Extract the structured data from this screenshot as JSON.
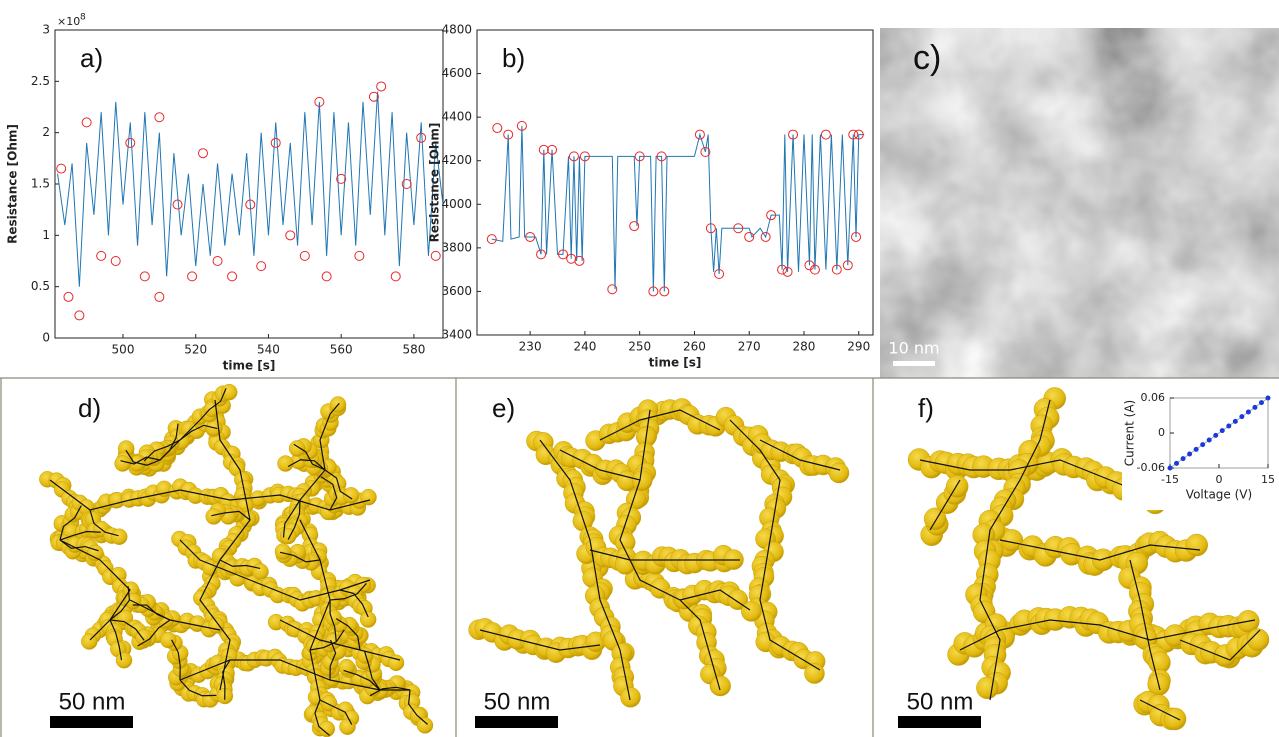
{
  "chart_data": [
    {
      "type": "line",
      "annotation": "a)",
      "xlabel": "time [s]",
      "ylabel": "Resistance [Ohm]",
      "y_multiplier": "×10",
      "y_multiplier_exponent": "8",
      "xlim": [
        481.3,
        588
      ],
      "ylim": [
        0,
        3
      ],
      "xticks": [
        500,
        520,
        540,
        560,
        580
      ],
      "yticks": [
        0,
        0.5,
        1,
        1.5,
        2,
        2.5,
        3
      ],
      "series": [
        {
          "color": "#1f77b4",
          "x": [
            482,
            484,
            486,
            488,
            490,
            492,
            494,
            496,
            498,
            500,
            502,
            504,
            506,
            508,
            510,
            512,
            514,
            516,
            518,
            520,
            522,
            524,
            526,
            528,
            530,
            532,
            534,
            536,
            538,
            540,
            542,
            544,
            546,
            548,
            550,
            552,
            554,
            556,
            558,
            560,
            562,
            564,
            566,
            568,
            570,
            572,
            574,
            576,
            578,
            580,
            582,
            584,
            586,
            588
          ],
          "values": [
            1.6,
            1.1,
            1.7,
            0.5,
            1.9,
            1.2,
            2.2,
            1.0,
            2.3,
            1.3,
            2.1,
            0.9,
            2.2,
            1.1,
            2.0,
            0.6,
            1.8,
            1.0,
            1.6,
            0.7,
            1.5,
            0.8,
            1.7,
            0.9,
            1.6,
            1.0,
            1.8,
            0.8,
            2.0,
            1.0,
            2.1,
            1.1,
            1.9,
            0.9,
            2.2,
            1.1,
            2.3,
            0.8,
            2.2,
            1.0,
            2.1,
            0.9,
            2.3,
            1.2,
            2.4,
            1.0,
            2.2,
            0.7,
            2.0,
            1.1,
            2.1,
            0.8,
            1.9,
            1.3
          ]
        },
        {
          "color": "#e8282b",
          "marker": "circle",
          "line": false,
          "x": [
            483,
            485,
            488,
            490,
            494,
            498,
            502,
            506,
            510,
            510,
            515,
            519,
            522,
            526,
            530,
            535,
            538,
            542,
            546,
            550,
            554,
            556,
            560,
            565,
            569,
            571,
            575,
            578,
            582,
            586
          ],
          "values": [
            1.65,
            0.4,
            0.22,
            2.1,
            0.8,
            0.75,
            1.9,
            0.6,
            2.15,
            0.4,
            1.3,
            0.6,
            1.8,
            0.75,
            0.6,
            1.3,
            0.7,
            1.9,
            1.0,
            0.8,
            2.3,
            0.6,
            1.55,
            0.8,
            2.35,
            2.45,
            0.6,
            1.5,
            1.95,
            0.8
          ]
        }
      ]
    },
    {
      "type": "line",
      "annotation": "b)",
      "xlabel": "time [s]",
      "ylabel": "Resistance [Ohm]",
      "xlim": [
        220.3,
        292.6
      ],
      "ylim": [
        3400,
        4800
      ],
      "xticks": [
        230,
        240,
        250,
        260,
        270,
        280,
        290
      ],
      "yticks": [
        3400,
        3600,
        3800,
        4000,
        4200,
        4400,
        4600,
        4800
      ],
      "series": [
        {
          "color": "#1f77b4",
          "x": [
            223,
            225,
            226,
            226.5,
            228,
            228.5,
            229,
            231,
            232,
            232.5,
            233,
            234,
            235,
            236,
            237,
            237.5,
            238,
            238.5,
            239,
            239.5,
            240,
            245,
            245.5,
            246,
            249,
            249.5,
            250,
            252,
            252.5,
            253,
            254,
            254.5,
            255,
            260,
            261,
            262,
            262.5,
            263,
            263.5,
            264,
            264.5,
            265,
            270,
            270.5,
            272,
            273,
            274,
            275.5,
            276,
            276.5,
            277,
            278,
            279,
            280,
            281,
            281.5,
            282,
            283,
            284,
            285,
            286,
            287,
            288,
            289,
            289.5,
            290,
            291
          ],
          "values": [
            3840,
            3830,
            4320,
            3840,
            3850,
            4360,
            3850,
            3850,
            3770,
            4250,
            3770,
            4250,
            3770,
            3770,
            4220,
            3750,
            4220,
            3740,
            4220,
            3740,
            4220,
            4220,
            3610,
            4220,
            4220,
            3900,
            4220,
            4220,
            3600,
            4220,
            4220,
            3600,
            4220,
            4220,
            4320,
            4240,
            4320,
            3890,
            3690,
            3890,
            3680,
            3890,
            3890,
            3850,
            3890,
            3850,
            3950,
            3950,
            3700,
            4320,
            3690,
            4320,
            3690,
            4320,
            3720,
            4320,
            3700,
            4320,
            3700,
            4320,
            3700,
            4320,
            3720,
            4320,
            3850,
            4320,
            4320
          ]
        },
        {
          "color": "#e8282b",
          "marker": "circle",
          "line": false,
          "x": [
            223,
            224,
            226,
            228.5,
            230,
            232,
            232.5,
            234,
            236,
            237.5,
            238,
            239,
            240,
            245,
            249,
            250,
            252.5,
            254,
            254.5,
            261,
            262,
            263,
            264.5,
            268,
            270,
            273,
            274,
            276,
            277,
            278,
            281,
            282,
            284,
            286,
            288,
            289,
            289.5,
            290
          ],
          "values": [
            3840,
            4350,
            4320,
            4360,
            3850,
            3770,
            4250,
            4250,
            3770,
            3750,
            4220,
            3740,
            4220,
            3610,
            3900,
            4220,
            3600,
            4220,
            3600,
            4320,
            4240,
            3890,
            3680,
            3890,
            3850,
            3850,
            3950,
            3700,
            3690,
            4320,
            3720,
            3700,
            4320,
            3700,
            3720,
            4320,
            3850,
            4320
          ]
        }
      ]
    },
    {
      "type": "line",
      "xlabel": "Voltage (V)",
      "ylabel": "Current (A)",
      "xlim": [
        -15,
        15
      ],
      "ylim": [
        -0.06,
        0.06
      ],
      "xticks": [
        -15,
        0,
        15
      ],
      "yticks": [
        -0.06,
        0,
        0.06
      ],
      "series": [
        {
          "color": "#1a3adb",
          "marker": "dot",
          "x": [
            -15,
            -13,
            -11,
            -9,
            -7,
            -5,
            -3,
            -1,
            1,
            3,
            5,
            7,
            9,
            11,
            13,
            15
          ],
          "values": [
            -0.06,
            -0.052,
            -0.044,
            -0.036,
            -0.028,
            -0.02,
            -0.012,
            -0.004,
            0.004,
            0.012,
            0.02,
            0.028,
            0.036,
            0.044,
            0.052,
            0.06
          ]
        }
      ]
    }
  ],
  "panel_c": {
    "label": "c)",
    "scale_bar": "10 nm"
  },
  "panel_d": {
    "label": "d)",
    "scale_bar": "50 nm"
  },
  "panel_e": {
    "label": "e)",
    "scale_bar": "50 nm"
  },
  "panel_f": {
    "label": "f)",
    "scale_bar": "50 nm"
  }
}
